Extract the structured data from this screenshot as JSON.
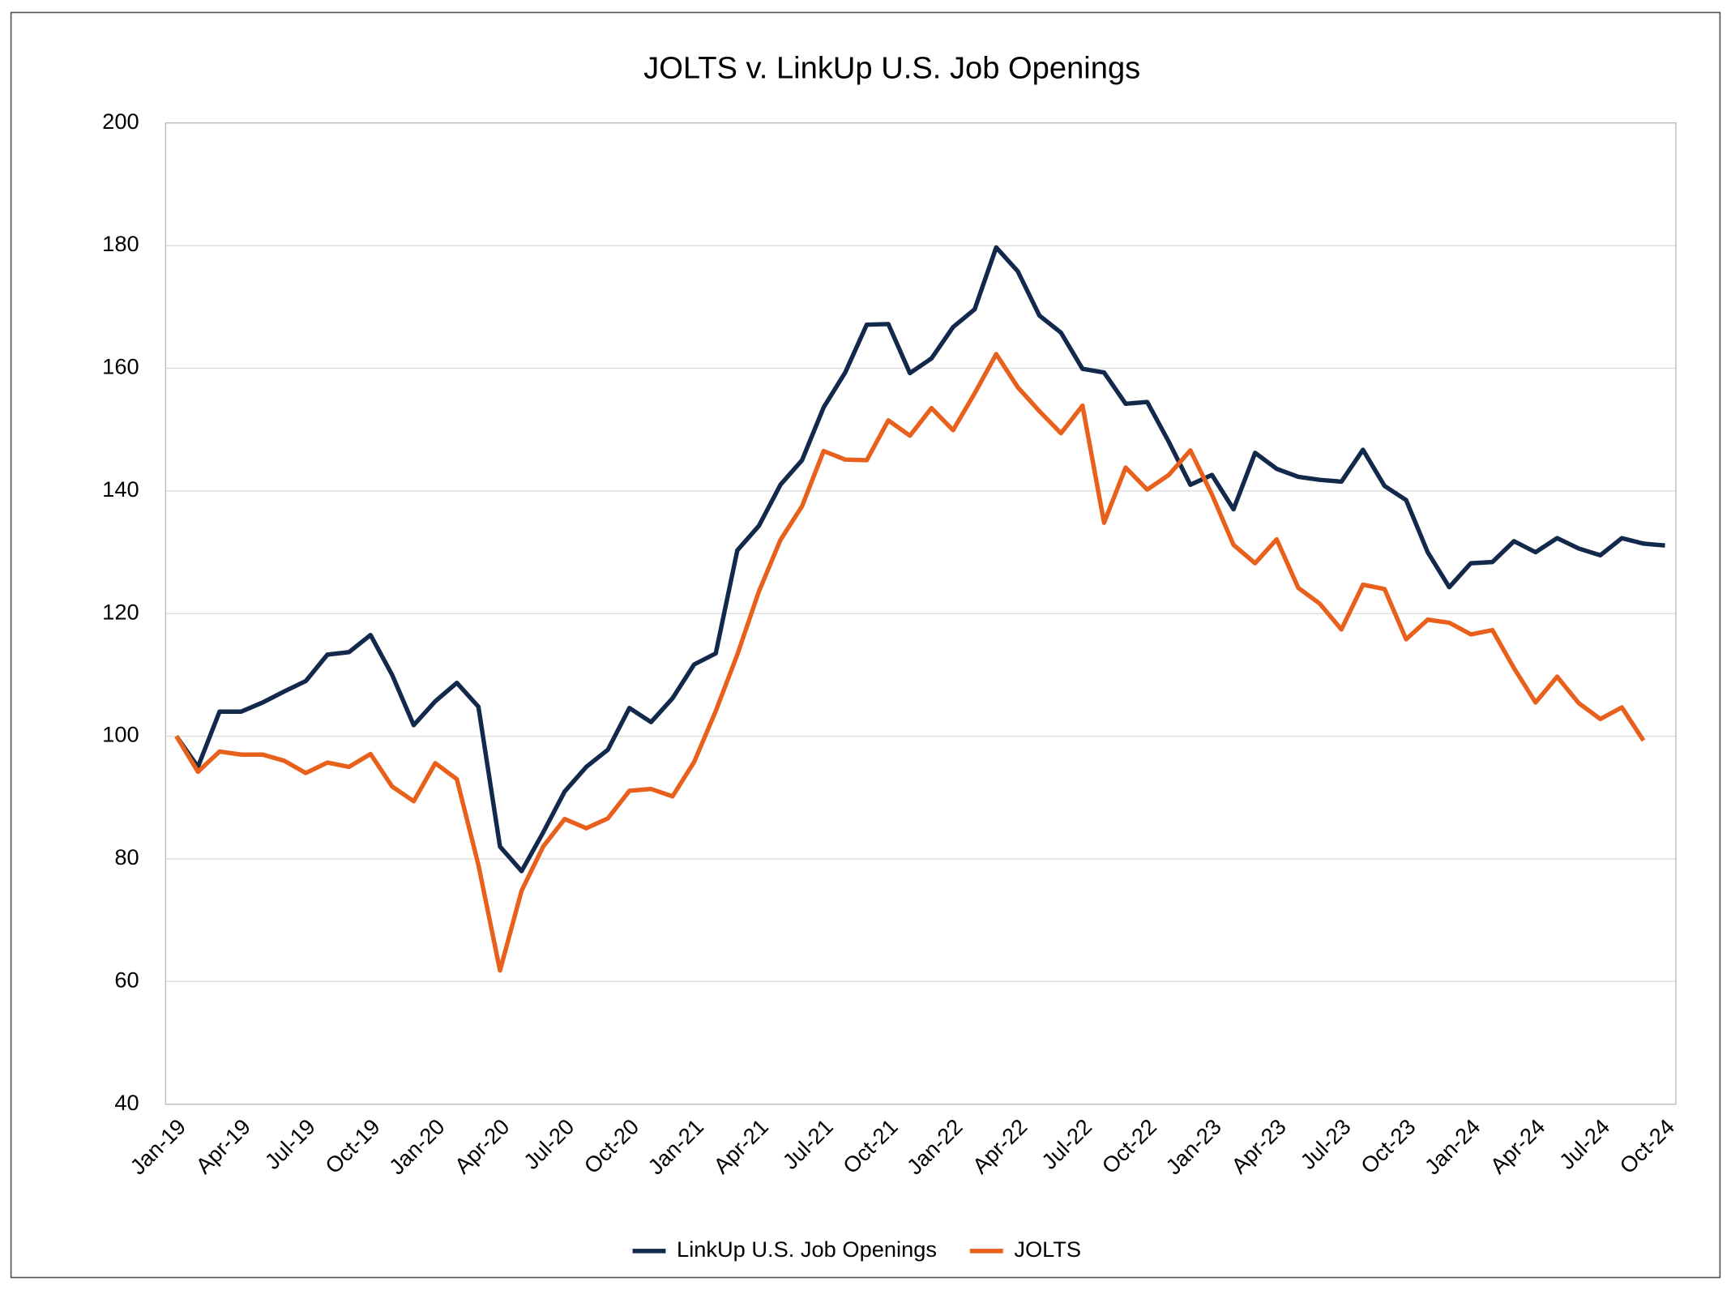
{
  "chart_data": {
    "type": "line",
    "title": "JOLTS v. LinkUp U.S. Job Openings",
    "categories": [
      "Jan-19",
      null,
      null,
      "Apr-19",
      null,
      null,
      "Jul-19",
      null,
      null,
      "Oct-19",
      null,
      null,
      "Jan-20",
      null,
      null,
      "Apr-20",
      null,
      null,
      "Jul-20",
      null,
      null,
      "Oct-20",
      null,
      null,
      "Jan-21",
      null,
      null,
      "Apr-21",
      null,
      null,
      "Jul-21",
      null,
      null,
      "Oct-21",
      null,
      null,
      "Jan-22",
      null,
      null,
      "Apr-22",
      null,
      null,
      "Jul-22",
      null,
      null,
      "Oct-22",
      null,
      null,
      "Jan-23",
      null,
      null,
      "Apr-23",
      null,
      null,
      "Jul-23",
      null,
      null,
      "Oct-23",
      null,
      null,
      "Jan-24",
      null,
      null,
      "Apr-24",
      null,
      null,
      "Jul-24",
      null,
      null,
      "Oct-24"
    ],
    "series": [
      {
        "name": "LinkUp U.S. Job Openings",
        "color": "#13294b",
        "values": [
          100,
          95,
          104,
          104,
          105.5,
          107.3,
          109,
          113.3,
          113.7,
          116.5,
          110,
          101.8,
          105.7,
          108.7,
          104.8,
          82,
          78,
          84.3,
          91,
          95,
          97.8,
          104.6,
          102.3,
          106.2,
          111.7,
          113.5,
          130.3,
          134.3,
          141,
          145,
          153.6,
          159.3,
          167.1,
          167.2,
          159.2,
          161.6,
          166.7,
          169.6,
          179.7,
          175.8,
          168.6,
          165.8,
          159.9,
          159.3,
          154.2,
          154.5,
          148,
          141,
          142.6,
          137,
          146.2,
          143.6,
          142.3,
          141.8,
          141.5,
          146.7,
          140.8,
          138.5,
          130,
          124.3,
          128.2,
          128.4,
          131.8,
          130,
          132.3,
          130.6,
          129.5,
          132.3,
          131.4,
          131.1
        ]
      },
      {
        "name": "JOLTS",
        "color": "#e8601c",
        "values": [
          100,
          94.2,
          97.5,
          97,
          97,
          96,
          94,
          95.7,
          95,
          97.1,
          91.8,
          89.4,
          95.6,
          93,
          79,
          61.8,
          74.8,
          82,
          86.5,
          85,
          86.6,
          91.1,
          91.4,
          90.2,
          95.8,
          104.1,
          113.3,
          123.6,
          132,
          137.5,
          146.5,
          145.1,
          145,
          151.5,
          149,
          153.5,
          149.9,
          155.9,
          162.3,
          156.9,
          153,
          149.4,
          153.9,
          134.8,
          143.8,
          140.2,
          142.6,
          146.6,
          139.4,
          131.2,
          128.2,
          132.1,
          124.2,
          121.6,
          117.4,
          124.7,
          124,
          115.8,
          119,
          118.5,
          116.6,
          117.3,
          111.1,
          105.5,
          109.7,
          105.4,
          102.8,
          104.7,
          99.3,
          null
        ]
      }
    ],
    "ylim": [
      40,
      200
    ],
    "yticks": [
      40,
      60,
      80,
      100,
      120,
      140,
      160,
      180,
      200
    ],
    "grid": true,
    "legend": "bottom"
  }
}
